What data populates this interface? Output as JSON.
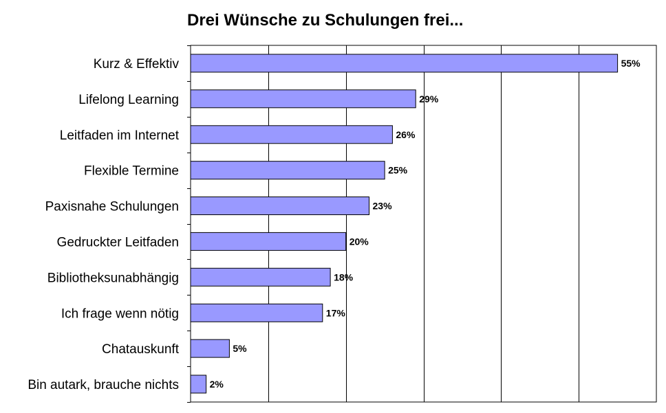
{
  "chart_data": {
    "type": "bar",
    "orientation": "horizontal",
    "title": "Drei Wünsche zu Schulungen frei...",
    "categories": [
      "Kurz & Effektiv",
      "Lifelong Learning",
      "Leitfaden im Internet",
      "Flexible Termine",
      "Paxisnahe Schulungen",
      "Gedruckter Leitfaden",
      "Bibliotheksunabhängig",
      "Ich frage wenn nötig",
      "Chatauskunft",
      "Bin autark, brauche nichts"
    ],
    "values": [
      55,
      29,
      26,
      25,
      23,
      20,
      18,
      17,
      5,
      2
    ],
    "value_labels": [
      "55%",
      "29%",
      "26%",
      "25%",
      "23%",
      "20%",
      "18%",
      "17%",
      "5%",
      "2%"
    ],
    "xlim": [
      0,
      60
    ],
    "x_gridlines": [
      10,
      20,
      30,
      40,
      50
    ],
    "legend": "none",
    "grid": true,
    "bar_color": "#9999FF",
    "bar_border_color": "#000000"
  }
}
